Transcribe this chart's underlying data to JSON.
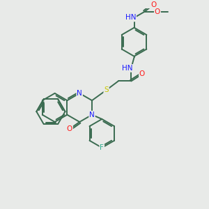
{
  "bg_color": "#e8eae8",
  "atom_colors": {
    "C": "#3a6b50",
    "N": "#1a1aff",
    "O": "#ff1a1a",
    "S": "#c8c800",
    "F": "#30b090",
    "H": "#708080"
  },
  "bond_color": "#3a6b50",
  "lw": 1.4,
  "bl": 0.72,
  "figsize": [
    3.0,
    3.0
  ],
  "dpi": 100,
  "xlim": [
    0,
    10
  ],
  "ylim": [
    0,
    10
  ]
}
